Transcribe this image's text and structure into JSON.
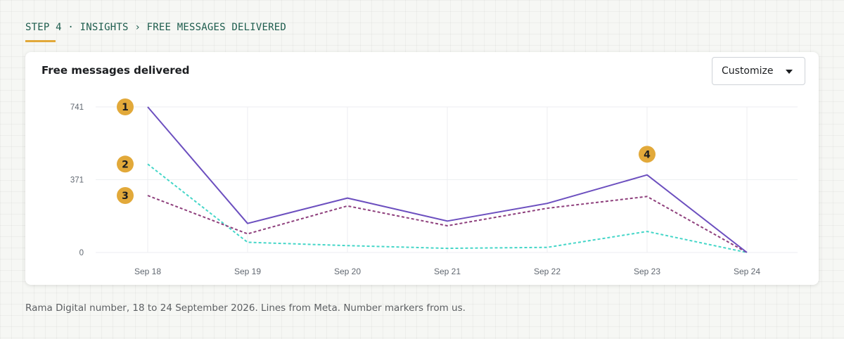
{
  "breadcrumb": "STEP 4 · INSIGHTS › FREE MESSAGES DELIVERED",
  "card": {
    "title": "Free messages delivered",
    "customize_label": "Customize"
  },
  "footnote": "Rama Digital number, 18 to 24 September 2026. Lines from Meta. Number markers from us.",
  "colors": {
    "accent": "#e2a93a",
    "breadcrumb": "#1d5c4d",
    "marker_fill": "#e2a93a"
  },
  "chart_data": {
    "type": "line",
    "categories": [
      "Sep 18",
      "Sep 19",
      "Sep 20",
      "Sep 21",
      "Sep 22",
      "Sep 23",
      "Sep 24"
    ],
    "y_ticks": [
      "741",
      "371",
      "0"
    ],
    "ylim": [
      0,
      741
    ],
    "grid": true,
    "series": [
      {
        "color": "#6c4fbf",
        "style": "solid",
        "values": [
          741,
          148,
          277,
          160,
          250,
          395,
          0
        ]
      },
      {
        "color": "#45d6c8",
        "style": "dashed",
        "values": [
          450,
          52,
          35,
          21,
          26,
          107,
          0
        ]
      },
      {
        "color": "#8e3f7c",
        "style": "dashed",
        "values": [
          290,
          95,
          237,
          136,
          225,
          285,
          0
        ]
      }
    ],
    "markers": [
      {
        "label": "1",
        "category": "Sep 18",
        "value": 741
      },
      {
        "label": "2",
        "category": "Sep 18",
        "value": 450
      },
      {
        "label": "3",
        "category": "Sep 18",
        "value": 290
      },
      {
        "label": "4",
        "category": "Sep 23",
        "value": 500
      }
    ]
  }
}
